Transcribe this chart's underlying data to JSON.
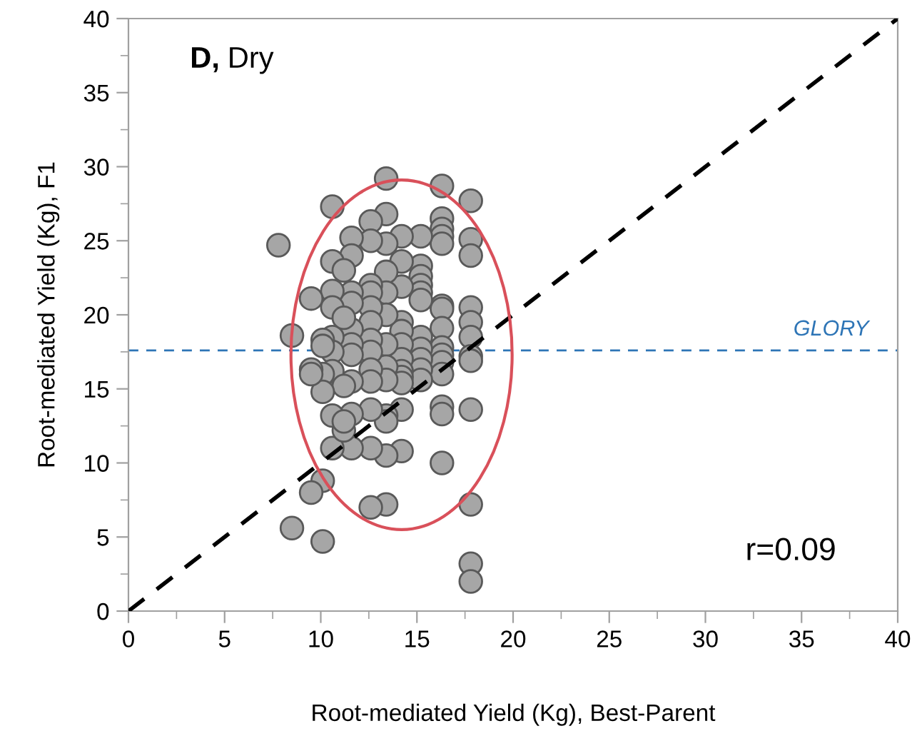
{
  "chart_data": {
    "type": "scatter",
    "title": "D, Dry",
    "xlabel": "Root-mediated Yield (Kg), Best-Parent",
    "ylabel": "Root-mediated Yield (Kg), F1",
    "xlim": [
      0,
      40
    ],
    "ylim": [
      0,
      40
    ],
    "xticks": [
      0,
      5,
      10,
      15,
      20,
      25,
      30,
      35,
      40
    ],
    "yticks": [
      0,
      5,
      10,
      15,
      20,
      25,
      30,
      35,
      40
    ],
    "grid": false,
    "legend": false,
    "marker": "circle",
    "series": [
      {
        "color": "#a6a6a6",
        "x": [
          17.8,
          17.8,
          17.8,
          17.8,
          17.8,
          17.8,
          17.8,
          17.8,
          17.8,
          17.8,
          17.8,
          17.8,
          16.3,
          16.3,
          16.3,
          16.3,
          16.3,
          16.3,
          16.3,
          16.3,
          16.3,
          16.3,
          16.3,
          16.3,
          16.3,
          16.3,
          16.3,
          15.2,
          15.2,
          15.2,
          15.2,
          15.2,
          15.2,
          15.2,
          15.2,
          15.2,
          15.2,
          15.2,
          14.2,
          14.2,
          14.2,
          14.2,
          14.2,
          14.2,
          14.2,
          14.2,
          14.2,
          14.2,
          14.2,
          14.2,
          13.4,
          13.4,
          13.4,
          13.4,
          13.4,
          13.4,
          13.4,
          13.4,
          13.4,
          13.4,
          13.4,
          13.4,
          13.4,
          12.6,
          12.6,
          12.6,
          12.6,
          12.6,
          12.6,
          12.6,
          12.6,
          12.6,
          12.6,
          12.6,
          12.6,
          12.6,
          11.6,
          11.6,
          11.6,
          11.6,
          11.6,
          11.6,
          11.6,
          11.6,
          11.6,
          11.6,
          10.6,
          10.6,
          10.6,
          10.6,
          10.6,
          10.6,
          10.6,
          10.6,
          10.6,
          11.2,
          11.2,
          11.2,
          11.2,
          11.2,
          10.1,
          10.1,
          10.1,
          10.1,
          10.1,
          10.1,
          9.5,
          9.5,
          9.5,
          9.5,
          8.5,
          8.5,
          7.8
        ],
        "values": [
          27.7,
          25.1,
          24.0,
          20.5,
          19.5,
          18.5,
          17.2,
          16.9,
          13.6,
          7.2,
          3.2,
          2.0,
          28.7,
          26.5,
          25.8,
          25.3,
          24.8,
          20.6,
          20.4,
          19.1,
          17.8,
          17.3,
          16.8,
          16.0,
          13.8,
          13.3,
          10.0,
          25.3,
          23.3,
          22.6,
          22.0,
          21.5,
          21.0,
          18.5,
          17.7,
          17.0,
          16.3,
          15.6,
          25.3,
          23.6,
          21.9,
          19.5,
          18.9,
          18.0,
          17.0,
          16.2,
          15.8,
          15.4,
          13.6,
          10.8,
          29.2,
          26.8,
          24.8,
          22.9,
          21.5,
          20.0,
          18.0,
          16.5,
          15.6,
          13.2,
          12.8,
          10.5,
          7.2,
          26.3,
          25.0,
          22.0,
          21.5,
          20.5,
          19.5,
          18.3,
          17.5,
          16.3,
          15.5,
          13.6,
          11.0,
          7.0,
          25.2,
          24.0,
          21.5,
          20.8,
          19.0,
          18.0,
          17.3,
          15.5,
          13.3,
          11.0,
          27.3,
          23.6,
          21.6,
          20.5,
          18.5,
          17.5,
          16.2,
          13.2,
          11.0,
          23.0,
          19.8,
          15.2,
          12.2,
          12.8,
          18.3,
          17.9,
          16.0,
          14.8,
          8.8,
          4.7,
          21.1,
          16.3,
          16.0,
          8.0,
          18.6,
          5.6,
          24.7
        ]
      },
      {
        "type": "line",
        "color": "#000000",
        "line_style": "dashed",
        "marker": "none",
        "x": [
          0,
          40
        ],
        "values": [
          0,
          40
        ]
      }
    ],
    "ref_lines": [
      {
        "axis": "y",
        "value": 17.6,
        "label": "GLORY",
        "color": "#2e75b6",
        "line_style": "dashed"
      }
    ],
    "annotations": [
      "r=0.09"
    ]
  }
}
